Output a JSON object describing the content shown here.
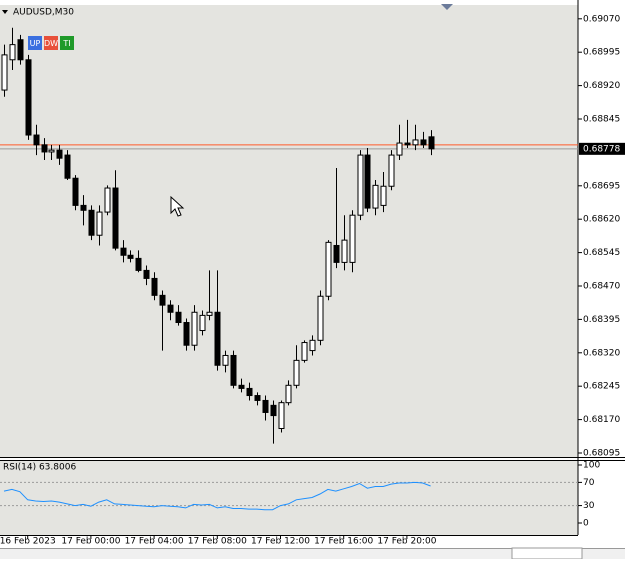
{
  "chart_data": [
    {
      "type": "candlestick",
      "title": "AUDUSD,M30",
      "buttons": [
        "UP",
        "DW",
        "TI"
      ],
      "button_colors": [
        "#3a6fe0",
        "#e8503a",
        "#1f9a2a"
      ],
      "categories": [
        null,
        null,
        null,
        "16 Feb 2023",
        null,
        null,
        null,
        null,
        null,
        null,
        null,
        "17 Feb 00:00",
        null,
        null,
        null,
        null,
        null,
        null,
        null,
        "17 Feb 04:00",
        null,
        null,
        null,
        null,
        null,
        null,
        null,
        "17 Feb 08:00",
        null,
        null,
        null,
        null,
        null,
        null,
        null,
        "17 Feb 12:00",
        null,
        null,
        null,
        null,
        null,
        null,
        null,
        "17 Feb 16:00",
        null,
        null,
        null,
        null,
        null,
        null,
        null,
        "17 Feb 20:00",
        null,
        null,
        null
      ],
      "open": [
        0.6891,
        0.68978,
        0.69023,
        0.68978,
        0.68809,
        0.68787,
        0.68771,
        0.68775,
        0.68764,
        0.68712,
        0.68651,
        0.6864,
        0.68584,
        0.68636,
        0.6869,
        0.68555,
        0.68539,
        0.68532,
        0.68505,
        0.68487,
        0.68449,
        0.68427,
        0.68411,
        0.68388,
        0.68337,
        0.6837,
        0.68404,
        0.68411,
        0.68292,
        0.68314,
        0.68247,
        0.6824,
        0.68224,
        0.68213,
        0.68202,
        0.6815,
        0.68208,
        0.68247,
        0.68303,
        0.68325,
        0.68348,
        0.68447,
        0.68561,
        0.68523,
        0.68523,
        0.68629,
        0.68764,
        0.68645,
        0.68651,
        0.68694,
        0.68764,
        0.68791,
        0.68787,
        0.68798,
        0.68805
      ],
      "high": [
        0.69012,
        0.6905,
        0.69034,
        0.68989,
        0.68832,
        0.68802,
        0.68787,
        0.68787,
        0.68775,
        0.68719,
        0.68674,
        0.68651,
        0.68651,
        0.68696,
        0.6873,
        0.68573,
        0.6855,
        0.6855,
        0.68516,
        0.68501,
        0.6846,
        0.68438,
        0.68427,
        0.68397,
        0.68427,
        0.68415,
        0.68505,
        0.68505,
        0.68325,
        0.68325,
        0.68262,
        0.68253,
        0.68231,
        0.68224,
        0.68213,
        0.68213,
        0.68258,
        0.68337,
        0.68348,
        0.68359,
        0.6846,
        0.68573,
        0.68735,
        0.68629,
        0.6864,
        0.68775,
        0.6878,
        0.68708,
        0.68726,
        0.68775,
        0.68832,
        0.68843,
        0.68832,
        0.68816,
        0.6882
      ],
      "low": [
        0.68895,
        0.68955,
        0.68967,
        0.68798,
        0.68764,
        0.68753,
        0.68753,
        0.68742,
        0.68708,
        0.6864,
        0.68606,
        0.68573,
        0.68561,
        0.68629,
        0.6855,
        0.68523,
        0.68523,
        0.68501,
        0.68472,
        0.68438,
        0.68325,
        0.68393,
        0.68381,
        0.68325,
        0.68325,
        0.68359,
        0.68393,
        0.6828,
        0.68276,
        0.6824,
        0.68231,
        0.68213,
        0.68202,
        0.68168,
        0.68116,
        0.68141,
        0.68202,
        0.6824,
        0.68298,
        0.68314,
        0.68337,
        0.68438,
        0.6851,
        0.68505,
        0.68501,
        0.68618,
        0.68636,
        0.68629,
        0.68636,
        0.68685,
        0.68753,
        0.6878,
        0.68775,
        0.6878,
        0.68764
      ],
      "close": [
        0.68989,
        0.69012,
        0.68978,
        0.68809,
        0.68787,
        0.68771,
        0.68775,
        0.68757,
        0.68712,
        0.68651,
        0.6864,
        0.68584,
        0.68636,
        0.6869,
        0.68555,
        0.68539,
        0.68532,
        0.68505,
        0.68487,
        0.68449,
        0.68427,
        0.68411,
        0.68388,
        0.68337,
        0.68411,
        0.68404,
        0.68411,
        0.68292,
        0.68314,
        0.68247,
        0.6824,
        0.68224,
        0.68213,
        0.68186,
        0.68179,
        0.68208,
        0.68247,
        0.68303,
        0.68343,
        0.68348,
        0.68447,
        0.68568,
        0.68523,
        0.68573,
        0.68629,
        0.68764,
        0.68645,
        0.68696,
        0.68694,
        0.68764,
        0.68791,
        0.68787,
        0.68798,
        0.68787,
        0.68778
      ],
      "up_color": "#ffffff",
      "down_color": "#000000",
      "outline_color": "#000000",
      "ylim": [
        0.68086,
        0.69101
      ],
      "yticks": [
        {
          "value": 0.6907,
          "label": "0.69070"
        },
        {
          "value": 0.68995,
          "label": "0.68995"
        },
        {
          "value": 0.6892,
          "label": "0.68920"
        },
        {
          "value": 0.68845,
          "label": "0.68845"
        },
        {
          "value": 0.68695,
          "label": "0.68695"
        },
        {
          "value": 0.6862,
          "label": "0.68620"
        },
        {
          "value": 0.68545,
          "label": "0.68545"
        },
        {
          "value": 0.6847,
          "label": "0.68470"
        },
        {
          "value": 0.68395,
          "label": "0.68395"
        },
        {
          "value": 0.6832,
          "label": "0.68320"
        },
        {
          "value": 0.68245,
          "label": "0.68245"
        },
        {
          "value": 0.6817,
          "label": "0.68170"
        },
        {
          "value": 0.68095,
          "label": "0.68095"
        }
      ],
      "current_price": {
        "value": 0.68778,
        "label": "0.68778"
      },
      "ask_line": 0.68787,
      "ask_color": "#ff5a2a",
      "bid_color": "#9a9a9a"
    },
    {
      "type": "line",
      "title": "RSI(14) 63.8006",
      "values": [
        55,
        58,
        54,
        40,
        38,
        37,
        38,
        36,
        33,
        30,
        32,
        29,
        36,
        40,
        33,
        32,
        31,
        30,
        29,
        28,
        30,
        29,
        28,
        26,
        32,
        31,
        32,
        26,
        28,
        25,
        25,
        24,
        24,
        23,
        23,
        30,
        33,
        40,
        42,
        44,
        50,
        58,
        55,
        59,
        63,
        68,
        60,
        63,
        63,
        67,
        69,
        69,
        70,
        69,
        63.8006
      ],
      "color": "#1e90ff",
      "ylim": [
        -20.7,
        108.6
      ],
      "yticks": [
        100,
        70,
        30,
        0
      ],
      "levels": [
        70,
        30
      ]
    }
  ]
}
